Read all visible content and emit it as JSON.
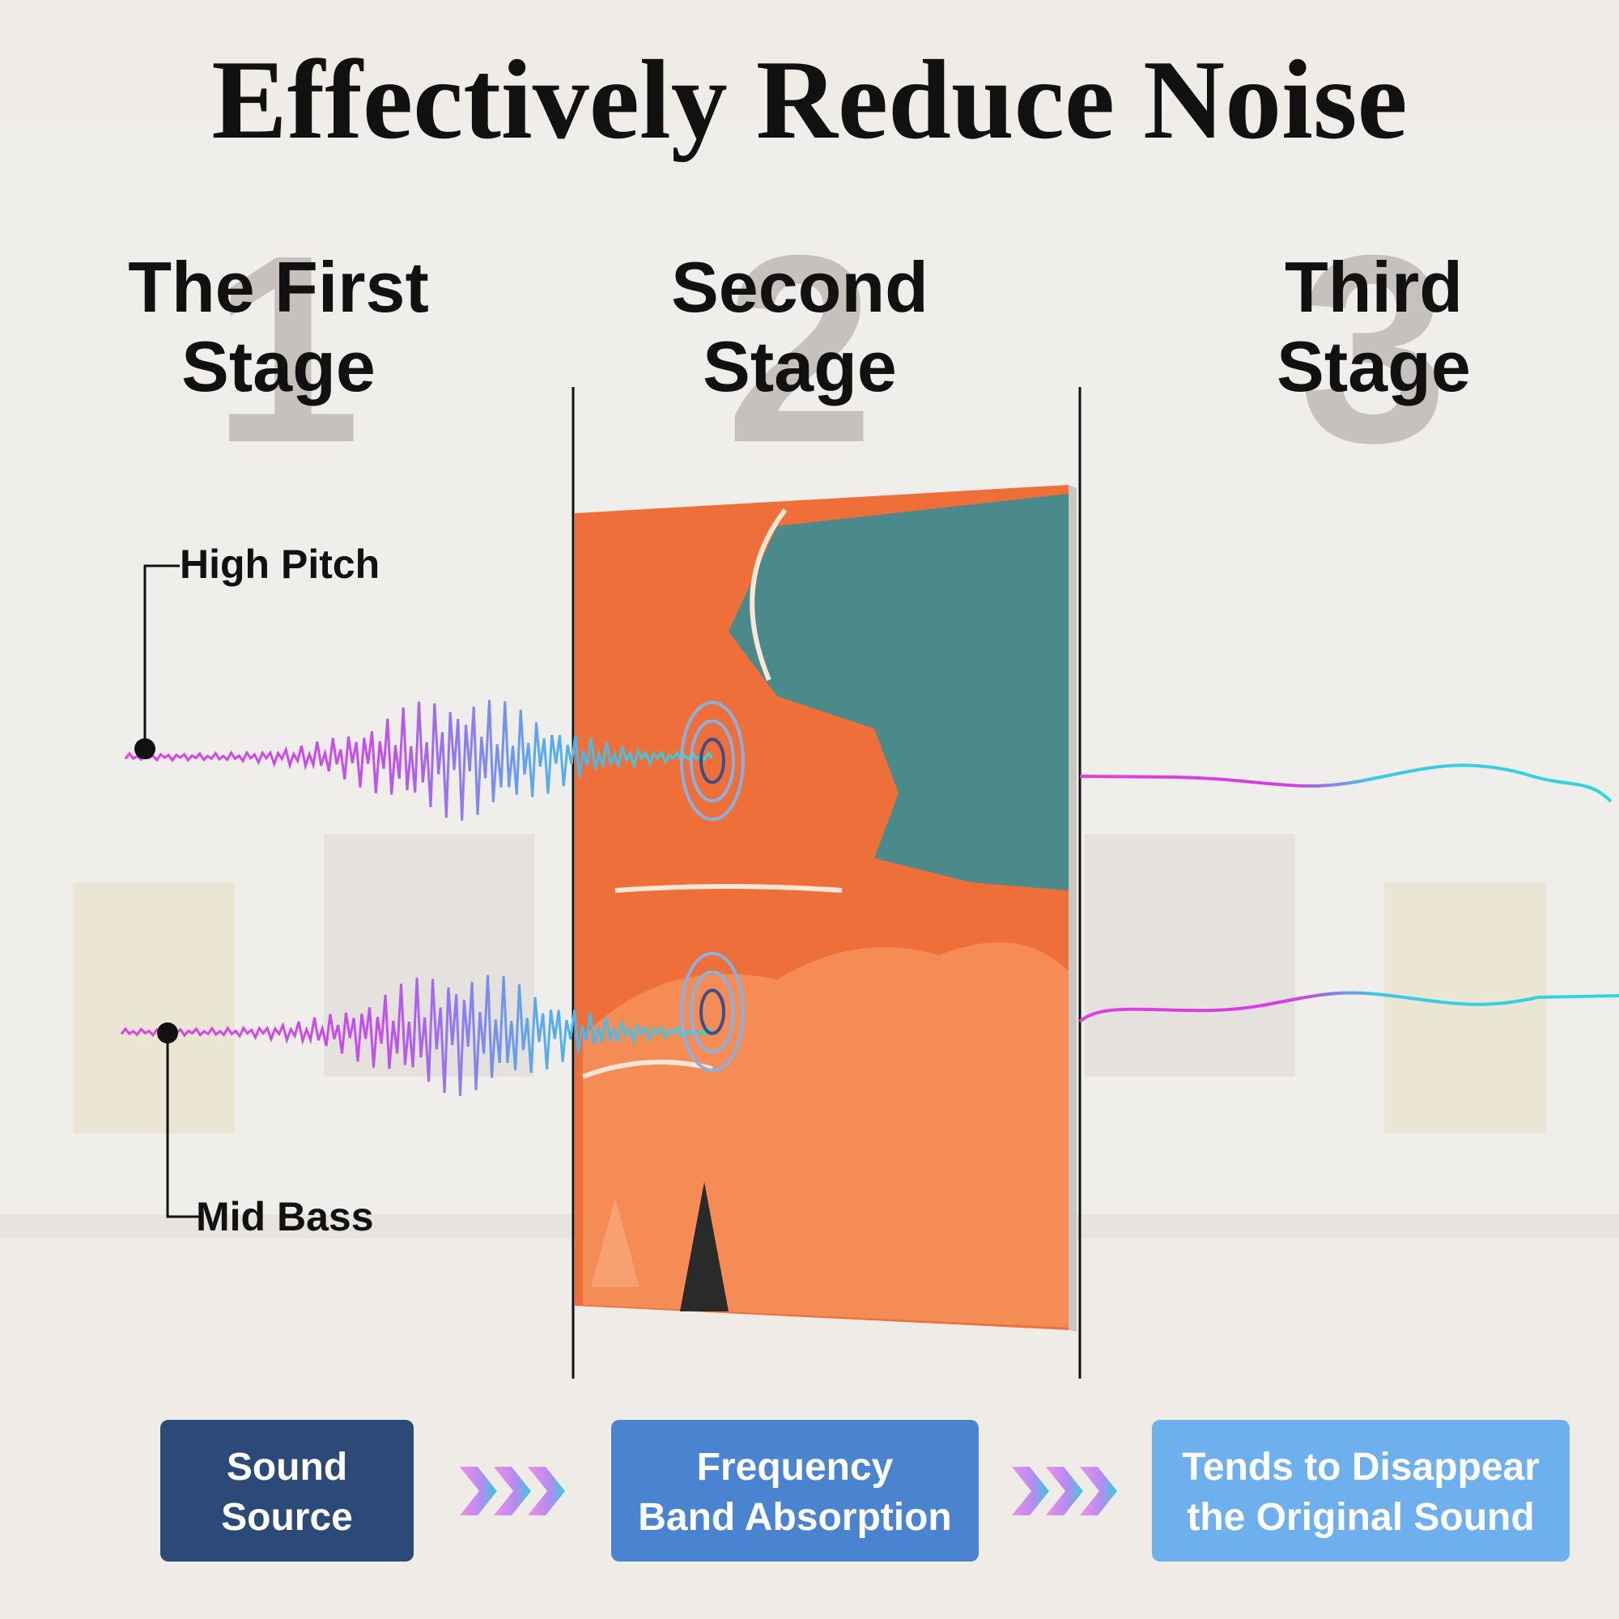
{
  "header": {
    "title": "Effectively Reduce Noise"
  },
  "stages": [
    {
      "number": "1",
      "lines": [
        "The First",
        "Stage"
      ]
    },
    {
      "number": "2",
      "lines": [
        "Second",
        "Stage"
      ]
    },
    {
      "number": "3",
      "lines": [
        "Third",
        "Stage"
      ]
    }
  ],
  "callouts": {
    "high": "High Pitch",
    "low": "Mid Bass"
  },
  "steps": [
    {
      "lines": [
        "Sound",
        "Source"
      ]
    },
    {
      "lines": [
        "Frequency",
        "Band Absorption"
      ]
    },
    {
      "lines": [
        "Tends to Disappear",
        "the Original Sound"
      ]
    }
  ]
}
